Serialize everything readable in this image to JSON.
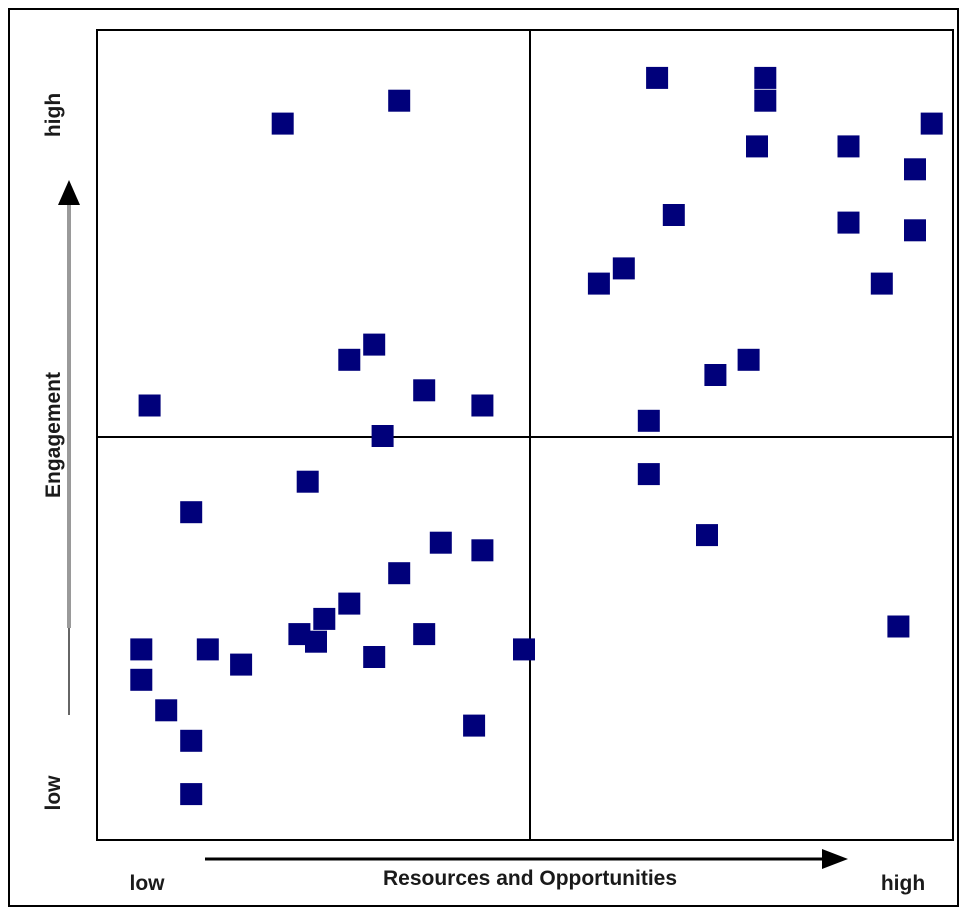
{
  "chart_data": {
    "type": "scatter",
    "xlabel": "Resources and Opportunities",
    "ylabel": "Engagement",
    "x_low_label": "low",
    "x_high_label": "high",
    "y_low_label": "low",
    "y_high_label": "high",
    "xlim": [
      0,
      100
    ],
    "ylim": [
      0,
      100
    ],
    "quadrant_split": {
      "x": 51,
      "y": 50
    },
    "grid": false,
    "marker_color": "#00007a",
    "points": [
      {
        "x": 5,
        "y": 54
      },
      {
        "x": 21,
        "y": 91
      },
      {
        "x": 35,
        "y": 94
      },
      {
        "x": 29,
        "y": 60
      },
      {
        "x": 32,
        "y": 62
      },
      {
        "x": 38,
        "y": 56
      },
      {
        "x": 45,
        "y": 54
      },
      {
        "x": 33,
        "y": 50
      },
      {
        "x": 66,
        "y": 97
      },
      {
        "x": 79,
        "y": 97
      },
      {
        "x": 79,
        "y": 94
      },
      {
        "x": 78,
        "y": 88
      },
      {
        "x": 89,
        "y": 88
      },
      {
        "x": 99,
        "y": 91
      },
      {
        "x": 97,
        "y": 85
      },
      {
        "x": 68,
        "y": 79
      },
      {
        "x": 89,
        "y": 78
      },
      {
        "x": 97,
        "y": 77
      },
      {
        "x": 62,
        "y": 72
      },
      {
        "x": 59,
        "y": 70
      },
      {
        "x": 93,
        "y": 70
      },
      {
        "x": 77,
        "y": 60
      },
      {
        "x": 73,
        "y": 58
      },
      {
        "x": 65,
        "y": 52
      },
      {
        "x": 65,
        "y": 45
      },
      {
        "x": 72,
        "y": 37
      },
      {
        "x": 95,
        "y": 25
      },
      {
        "x": 24,
        "y": 44
      },
      {
        "x": 10,
        "y": 40
      },
      {
        "x": 40,
        "y": 36
      },
      {
        "x": 45,
        "y": 35
      },
      {
        "x": 35,
        "y": 32
      },
      {
        "x": 29,
        "y": 28
      },
      {
        "x": 26,
        "y": 26
      },
      {
        "x": 23,
        "y": 24
      },
      {
        "x": 25,
        "y": 23
      },
      {
        "x": 38,
        "y": 24
      },
      {
        "x": 32,
        "y": 21
      },
      {
        "x": 12,
        "y": 22
      },
      {
        "x": 16,
        "y": 20
      },
      {
        "x": 4,
        "y": 22
      },
      {
        "x": 4,
        "y": 18
      },
      {
        "x": 7,
        "y": 14
      },
      {
        "x": 10,
        "y": 10
      },
      {
        "x": 44,
        "y": 12
      },
      {
        "x": 50,
        "y": 22
      },
      {
        "x": 10,
        "y": 3
      }
    ]
  }
}
